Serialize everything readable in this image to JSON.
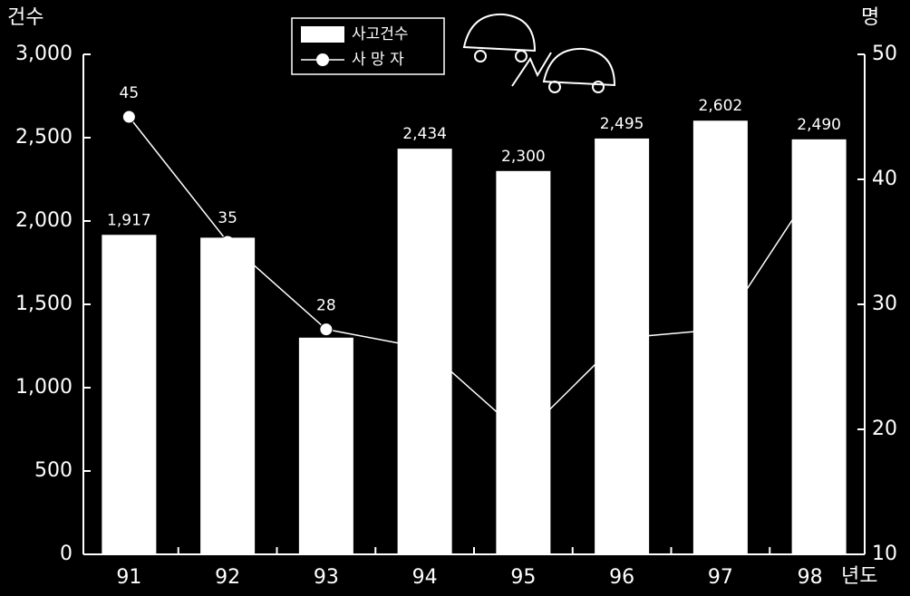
{
  "chart_data": {
    "type": "bar-line",
    "y_label": "건수",
    "y2_label": "명",
    "x_label": "년도",
    "categories": [
      "91",
      "92",
      "93",
      "94",
      "95",
      "96",
      "97",
      "98"
    ],
    "series": [
      {
        "name": "사고건수",
        "color": "#ffffff",
        "values": [
          1917,
          1900,
          1300,
          2434,
          2300,
          2495,
          2602,
          2490
        ],
        "value_labels": [
          "1,917",
          null,
          null,
          "2,434",
          "2,300",
          "2,495",
          "2,602",
          "2,490"
        ]
      },
      {
        "name": "사 망 자",
        "color": "#ffffff",
        "axis": "y2",
        "values": [
          45,
          35,
          28,
          26.5,
          19.5,
          27.3,
          28,
          40
        ],
        "value_labels": [
          "45",
          "35",
          "28",
          null,
          null,
          null,
          null,
          null
        ]
      }
    ],
    "ylim": [
      0,
      3000
    ],
    "yticks": [
      0,
      500,
      {
        "value": 1000,
        "label": "1,000"
      },
      {
        "value": 1500,
        "label": "1,500"
      },
      {
        "value": 2000,
        "label": "2,000"
      },
      {
        "value": 2500,
        "label": "2,500"
      },
      {
        "value": 3000,
        "label": "3,000"
      }
    ],
    "y2lim": [
      10,
      50
    ],
    "y2ticks": [
      10,
      20,
      30,
      40,
      50
    ]
  }
}
